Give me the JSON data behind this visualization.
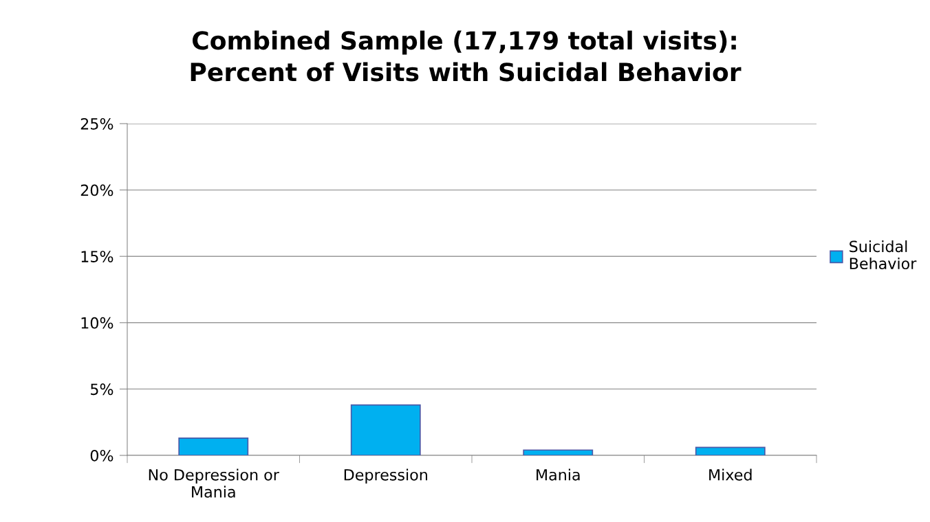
{
  "chart_data": {
    "type": "bar",
    "title": "Combined Sample (17,179 total visits):\nPercent of Visits with Suicidal Behavior",
    "categories": [
      "No Depression or\nMania",
      "Depression",
      "Mania",
      "Mixed"
    ],
    "series": [
      {
        "name": "Suicidal\nBehavior",
        "color": "#00b0f0",
        "values": [
          1.3,
          3.8,
          0.4,
          0.6
        ]
      }
    ],
    "ylim": [
      0,
      25
    ],
    "yticks": [
      {
        "value": 0,
        "label": "0%"
      },
      {
        "value": 5,
        "label": "5%"
      },
      {
        "value": 10,
        "label": "10%"
      },
      {
        "value": 15,
        "label": "15%"
      },
      {
        "value": 20,
        "label": "20%"
      },
      {
        "value": 25,
        "label": "25%"
      }
    ],
    "grid": "y",
    "legend": "right"
  }
}
